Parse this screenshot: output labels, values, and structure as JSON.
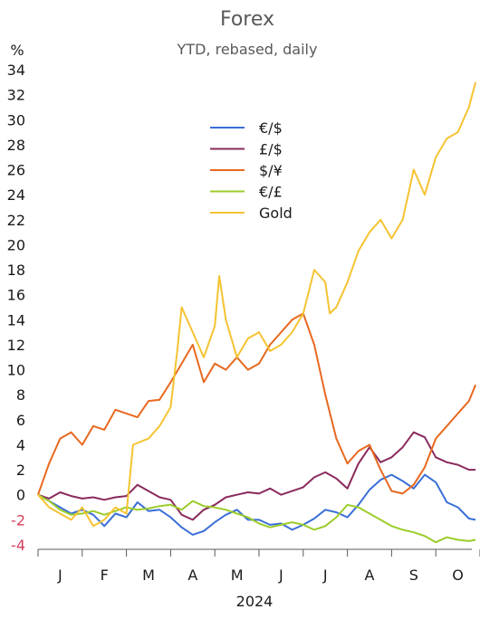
{
  "chart_data": {
    "type": "line",
    "title": "Forex",
    "subtitle": "YTD, rebased, daily",
    "ylabel": "%",
    "xlabel": "2024",
    "ylim": [
      -4,
      34
    ],
    "yticks": [
      -4,
      -2,
      0,
      2,
      4,
      6,
      8,
      10,
      12,
      14,
      16,
      18,
      20,
      22,
      24,
      26,
      28,
      30,
      32,
      34
    ],
    "months": [
      "J",
      "F",
      "M",
      "A",
      "M",
      "J",
      "J",
      "A",
      "S",
      "O"
    ],
    "x_unit": "month index (0 = start of Jan 2024)",
    "xlim": [
      0,
      9.9
    ],
    "negative_tick_color": "#d23f5b",
    "legend_position": "upper-center",
    "grid": false,
    "series": [
      {
        "name": "€/$",
        "color": "#3a6fd6",
        "points": [
          [
            0,
            0
          ],
          [
            0.25,
            -0.5
          ],
          [
            0.5,
            -1
          ],
          [
            0.75,
            -1.5
          ],
          [
            1,
            -1.2
          ],
          [
            1.25,
            -1.6
          ],
          [
            1.5,
            -2.5
          ],
          [
            1.75,
            -1.5
          ],
          [
            2,
            -1.8
          ],
          [
            2.25,
            -0.6
          ],
          [
            2.5,
            -1.3
          ],
          [
            2.75,
            -1.2
          ],
          [
            3,
            -1.8
          ],
          [
            3.25,
            -2.6
          ],
          [
            3.5,
            -3.2
          ],
          [
            3.75,
            -2.9
          ],
          [
            4,
            -2.2
          ],
          [
            4.25,
            -1.6
          ],
          [
            4.5,
            -1.2
          ],
          [
            4.75,
            -2
          ],
          [
            5,
            -2
          ],
          [
            5.25,
            -2.4
          ],
          [
            5.5,
            -2.3
          ],
          [
            5.75,
            -2.8
          ],
          [
            6,
            -2.4
          ],
          [
            6.25,
            -1.9
          ],
          [
            6.5,
            -1.2
          ],
          [
            6.75,
            -1.4
          ],
          [
            7,
            -1.8
          ],
          [
            7.25,
            -0.8
          ],
          [
            7.5,
            0.4
          ],
          [
            7.75,
            1.2
          ],
          [
            8,
            1.6
          ],
          [
            8.25,
            1.1
          ],
          [
            8.5,
            0.5
          ],
          [
            8.75,
            1.6
          ],
          [
            9,
            1
          ],
          [
            9.25,
            -0.6
          ],
          [
            9.5,
            -1
          ],
          [
            9.75,
            -1.9
          ],
          [
            9.9,
            -2
          ]
        ]
      },
      {
        "name": "£/$",
        "color": "#8a2a5c",
        "points": [
          [
            0,
            0
          ],
          [
            0.25,
            -0.3
          ],
          [
            0.5,
            0.2
          ],
          [
            0.75,
            -0.1
          ],
          [
            1,
            -0.3
          ],
          [
            1.25,
            -0.2
          ],
          [
            1.5,
            -0.4
          ],
          [
            1.75,
            -0.2
          ],
          [
            2,
            -0.1
          ],
          [
            2.25,
            0.8
          ],
          [
            2.5,
            0.3
          ],
          [
            2.75,
            -0.2
          ],
          [
            3,
            -0.4
          ],
          [
            3.25,
            -1.6
          ],
          [
            3.5,
            -2
          ],
          [
            3.75,
            -1.2
          ],
          [
            4,
            -0.8
          ],
          [
            4.25,
            -0.2
          ],
          [
            4.5,
            0
          ],
          [
            4.75,
            0.2
          ],
          [
            5,
            0.1
          ],
          [
            5.25,
            0.5
          ],
          [
            5.5,
            0
          ],
          [
            5.75,
            0.3
          ],
          [
            6,
            0.6
          ],
          [
            6.25,
            1.4
          ],
          [
            6.5,
            1.8
          ],
          [
            6.75,
            1.3
          ],
          [
            7,
            0.5
          ],
          [
            7.25,
            2.5
          ],
          [
            7.5,
            3.8
          ],
          [
            7.75,
            2.6
          ],
          [
            8,
            3
          ],
          [
            8.25,
            3.8
          ],
          [
            8.5,
            5
          ],
          [
            8.75,
            4.6
          ],
          [
            9,
            3
          ],
          [
            9.25,
            2.6
          ],
          [
            9.5,
            2.4
          ],
          [
            9.75,
            2
          ],
          [
            9.9,
            2
          ]
        ]
      },
      {
        "name": "$/¥",
        "color": "#e8681f",
        "points": [
          [
            0,
            0
          ],
          [
            0.25,
            2.5
          ],
          [
            0.5,
            4.5
          ],
          [
            0.75,
            5
          ],
          [
            1,
            4
          ],
          [
            1.25,
            5.5
          ],
          [
            1.5,
            5.2
          ],
          [
            1.75,
            6.8
          ],
          [
            2,
            6.5
          ],
          [
            2.25,
            6.2
          ],
          [
            2.5,
            7.5
          ],
          [
            2.75,
            7.6
          ],
          [
            3,
            9
          ],
          [
            3.25,
            10.5
          ],
          [
            3.5,
            12
          ],
          [
            3.75,
            9
          ],
          [
            4,
            10.5
          ],
          [
            4.25,
            10
          ],
          [
            4.5,
            11
          ],
          [
            4.75,
            10
          ],
          [
            5,
            10.5
          ],
          [
            5.25,
            12
          ],
          [
            5.5,
            13
          ],
          [
            5.75,
            14
          ],
          [
            6,
            14.5
          ],
          [
            6.25,
            12
          ],
          [
            6.5,
            8
          ],
          [
            6.75,
            4.5
          ],
          [
            7,
            2.5
          ],
          [
            7.25,
            3.5
          ],
          [
            7.5,
            4
          ],
          [
            7.75,
            2
          ],
          [
            8,
            0.3
          ],
          [
            8.25,
            0.1
          ],
          [
            8.5,
            0.8
          ],
          [
            8.75,
            2.2
          ],
          [
            9,
            4.5
          ],
          [
            9.25,
            5.5
          ],
          [
            9.5,
            6.5
          ],
          [
            9.75,
            7.5
          ],
          [
            9.9,
            8.8
          ]
        ]
      },
      {
        "name": "€/£",
        "color": "#9ccc2a",
        "points": [
          [
            0,
            0
          ],
          [
            0.25,
            -0.5
          ],
          [
            0.5,
            -1.2
          ],
          [
            0.75,
            -1.6
          ],
          [
            1,
            -1.5
          ],
          [
            1.25,
            -1.3
          ],
          [
            1.5,
            -1.6
          ],
          [
            1.75,
            -1.3
          ],
          [
            2,
            -1
          ],
          [
            2.25,
            -1.2
          ],
          [
            2.5,
            -1.1
          ],
          [
            2.75,
            -0.9
          ],
          [
            3,
            -0.8
          ],
          [
            3.25,
            -1.2
          ],
          [
            3.5,
            -0.5
          ],
          [
            3.75,
            -0.9
          ],
          [
            4,
            -1
          ],
          [
            4.25,
            -1.2
          ],
          [
            4.5,
            -1.5
          ],
          [
            4.75,
            -1.8
          ],
          [
            5,
            -2.3
          ],
          [
            5.25,
            -2.6
          ],
          [
            5.5,
            -2.4
          ],
          [
            5.75,
            -2.2
          ],
          [
            6,
            -2.4
          ],
          [
            6.25,
            -2.8
          ],
          [
            6.5,
            -2.5
          ],
          [
            6.75,
            -1.8
          ],
          [
            7,
            -0.8
          ],
          [
            7.25,
            -1
          ],
          [
            7.5,
            -1.5
          ],
          [
            7.75,
            -2
          ],
          [
            8,
            -2.5
          ],
          [
            8.25,
            -2.8
          ],
          [
            8.5,
            -3
          ],
          [
            8.75,
            -3.3
          ],
          [
            9,
            -3.8
          ],
          [
            9.25,
            -3.4
          ],
          [
            9.5,
            -3.6
          ],
          [
            9.75,
            -3.7
          ],
          [
            9.9,
            -3.6
          ]
        ]
      },
      {
        "name": "Gold",
        "color": "#f5c332",
        "points": [
          [
            0,
            0
          ],
          [
            0.25,
            -1
          ],
          [
            0.5,
            -1.5
          ],
          [
            0.75,
            -2
          ],
          [
            1,
            -1
          ],
          [
            1.25,
            -2.5
          ],
          [
            1.5,
            -2
          ],
          [
            1.75,
            -1
          ],
          [
            2,
            -1.5
          ],
          [
            2.15,
            4
          ],
          [
            2.5,
            4.5
          ],
          [
            2.75,
            5.5
          ],
          [
            3,
            7
          ],
          [
            3.15,
            11.5
          ],
          [
            3.25,
            15
          ],
          [
            3.5,
            13
          ],
          [
            3.75,
            11
          ],
          [
            4,
            13.5
          ],
          [
            4.1,
            17.5
          ],
          [
            4.25,
            14
          ],
          [
            4.5,
            11
          ],
          [
            4.75,
            12.5
          ],
          [
            5,
            13
          ],
          [
            5.25,
            11.5
          ],
          [
            5.5,
            12
          ],
          [
            5.75,
            13
          ],
          [
            6,
            14.5
          ],
          [
            6.25,
            18
          ],
          [
            6.5,
            17
          ],
          [
            6.6,
            14.5
          ],
          [
            6.75,
            15
          ],
          [
            7,
            17
          ],
          [
            7.25,
            19.5
          ],
          [
            7.5,
            21
          ],
          [
            7.75,
            22
          ],
          [
            8,
            20.5
          ],
          [
            8.25,
            22
          ],
          [
            8.5,
            26
          ],
          [
            8.75,
            24
          ],
          [
            9,
            27
          ],
          [
            9.25,
            28.5
          ],
          [
            9.5,
            29
          ],
          [
            9.75,
            31
          ],
          [
            9.9,
            33
          ]
        ]
      }
    ]
  }
}
